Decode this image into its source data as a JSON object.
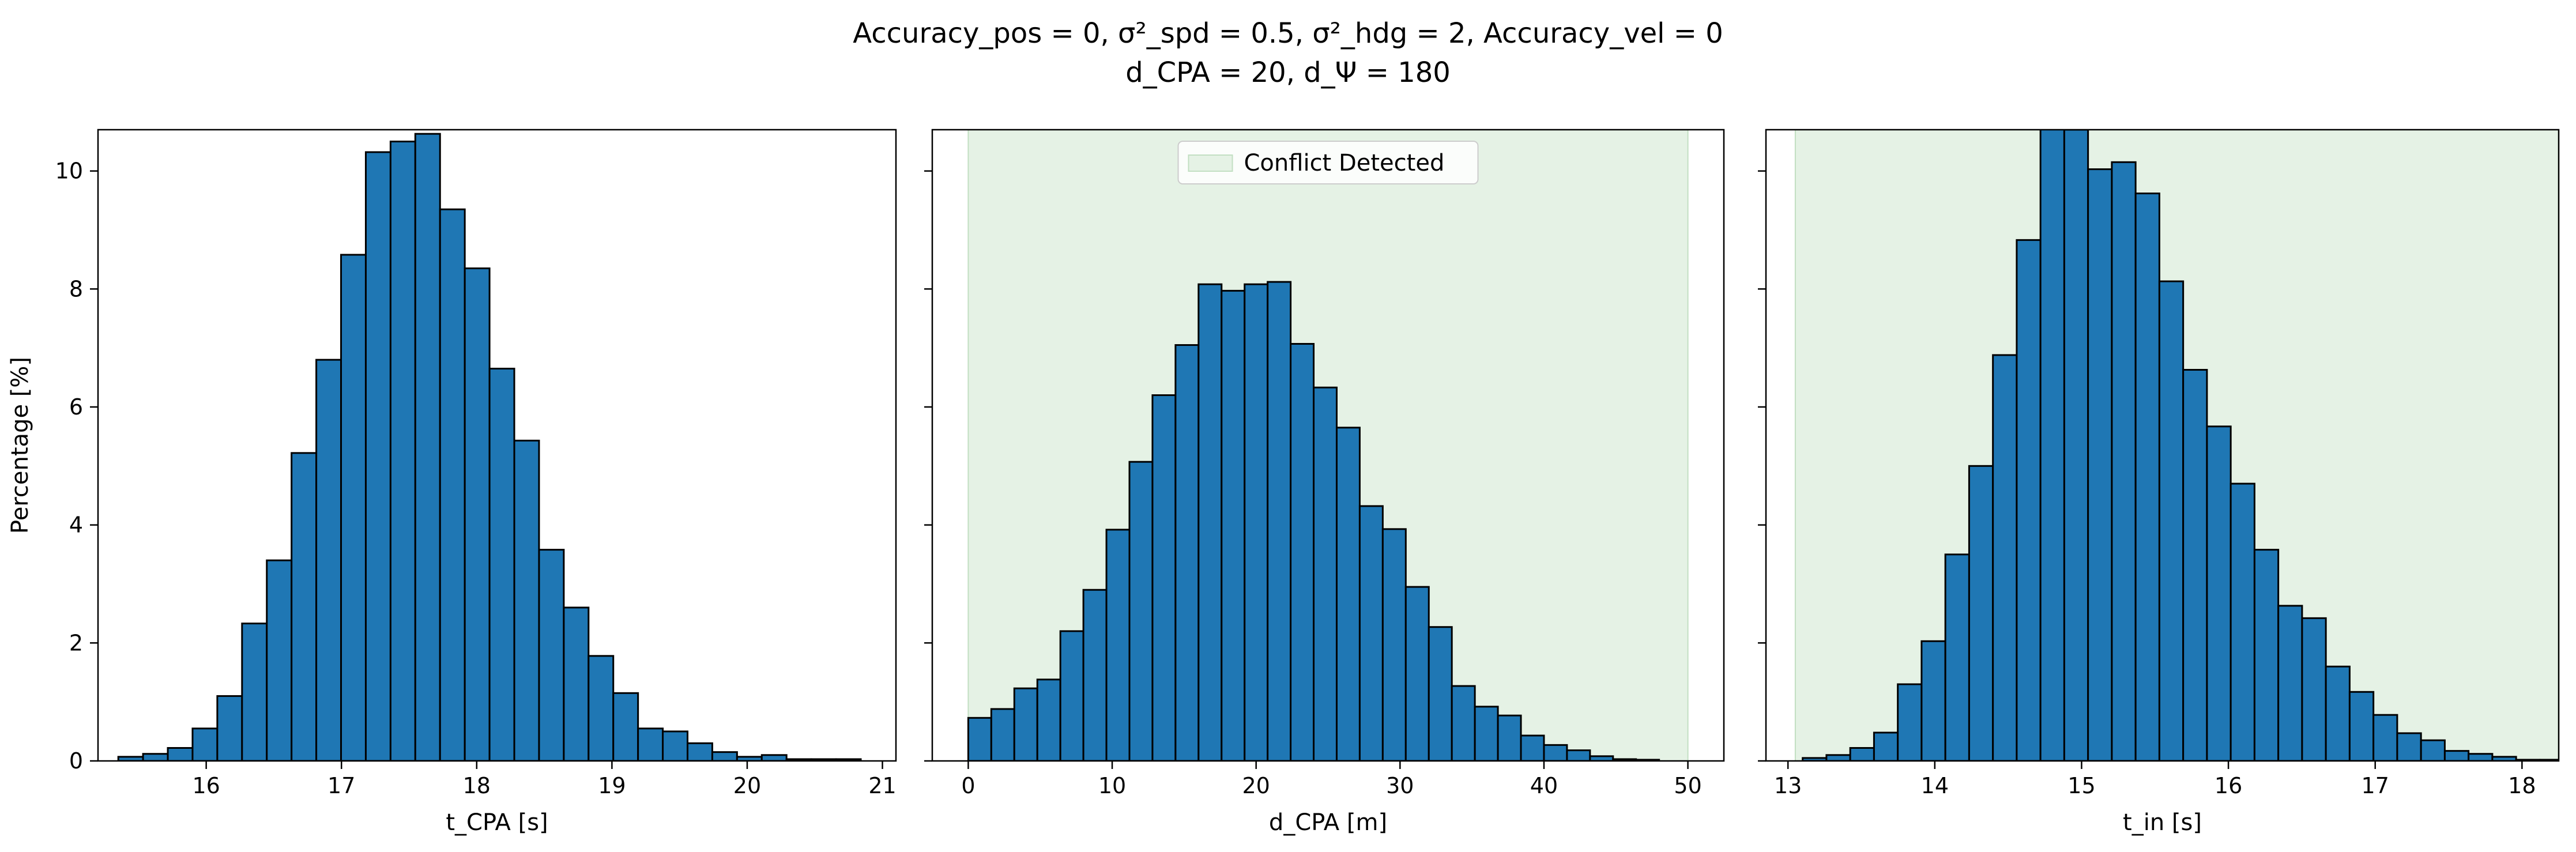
{
  "figure": {
    "title_line1": "Accuracy_pos = 0, σ²_spd = 0.5, σ²_hdg = 2, Accuracy_vel = 0",
    "title_line2": "d_CPA = 20, d_Ψ = 180"
  },
  "chart_data": [
    {
      "type": "bar",
      "xlabel": "t_CPA [s]",
      "ylabel": "Percentage [%]",
      "xlim": [
        15.2,
        21.1
      ],
      "ylim": [
        0,
        10.7
      ],
      "xticks": [
        16,
        17,
        18,
        19,
        20,
        21
      ],
      "yticks": [
        0,
        2,
        4,
        6,
        8,
        10
      ],
      "bin_start": 15.35,
      "bin_width": 0.183,
      "values": [
        0.07,
        0.12,
        0.22,
        0.55,
        1.1,
        2.33,
        3.4,
        5.22,
        6.8,
        8.58,
        10.32,
        10.5,
        10.63,
        9.35,
        8.35,
        6.65,
        5.43,
        3.58,
        2.6,
        1.78,
        1.15,
        0.55,
        0.5,
        0.3,
        0.15,
        0.07,
        0.1,
        0.03,
        0.03,
        0.03
      ],
      "bar_color": "#1f77b4",
      "edge_color": "#000000"
    },
    {
      "type": "bar",
      "xlabel": "d_CPA [m]",
      "xlim": [
        -2.5,
        52.5
      ],
      "ylim": [
        0,
        10.7
      ],
      "xticks": [
        0,
        10,
        20,
        30,
        40,
        50
      ],
      "yticks": [
        0,
        2,
        4,
        6,
        8,
        10
      ],
      "bin_start": 0,
      "bin_width": 1.6,
      "values": [
        0.73,
        0.88,
        1.23,
        1.38,
        2.2,
        2.9,
        3.92,
        5.07,
        6.2,
        7.05,
        8.08,
        7.97,
        8.08,
        8.12,
        7.07,
        6.33,
        5.65,
        4.32,
        3.93,
        2.95,
        2.27,
        1.27,
        0.92,
        0.77,
        0.43,
        0.27,
        0.18,
        0.08,
        0.03,
        0.02
      ],
      "bar_color": "#1f77b4",
      "edge_color": "#000000",
      "shaded_region": [
        0,
        50
      ],
      "shade_color": "#e5f2e5",
      "legend": "Conflict Detected",
      "legend_position": "upper center"
    },
    {
      "type": "bar",
      "xlabel": "t_in [s]",
      "xlim": [
        12.85,
        18.25
      ],
      "ylim": [
        0,
        10.7
      ],
      "xticks": [
        13,
        14,
        15,
        16,
        17,
        18
      ],
      "yticks": [
        0,
        2,
        4,
        6,
        8,
        10
      ],
      "bin_start": 13.1,
      "bin_width": 0.162,
      "values": [
        0.05,
        0.1,
        0.22,
        0.48,
        1.3,
        2.03,
        3.5,
        5.0,
        6.88,
        8.83,
        10.9,
        10.7,
        10.03,
        10.15,
        9.62,
        8.13,
        6.63,
        5.67,
        4.7,
        3.58,
        2.63,
        2.42,
        1.6,
        1.17,
        0.78,
        0.47,
        0.35,
        0.17,
        0.12,
        0.07,
        0.02,
        0.02
      ],
      "bar_color": "#1f77b4",
      "edge_color": "#000000",
      "shaded_region": [
        13.05,
        18.25
      ],
      "shade_color": "#e5f2e5"
    }
  ]
}
